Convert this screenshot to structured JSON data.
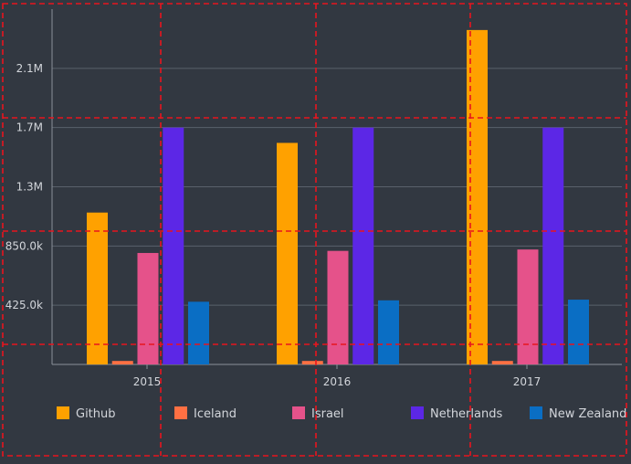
{
  "chart_data": {
    "type": "bar",
    "categories": [
      "2015",
      "2016",
      "2017"
    ],
    "series": [
      {
        "name": "Github",
        "color": "#FFA100",
        "values": [
          1090000,
          1590000,
          2400000
        ]
      },
      {
        "name": "Iceland",
        "color": "#FF7043",
        "values": [
          25000,
          25000,
          25000
        ]
      },
      {
        "name": "Israel",
        "color": "#E5528A",
        "values": [
          800000,
          815000,
          825000
        ]
      },
      {
        "name": "Netherlands",
        "color": "#5C27E6",
        "values": [
          1700000,
          1700000,
          1700000
        ]
      },
      {
        "name": "New Zealand",
        "color": "#0A6EC4",
        "values": [
          450000,
          460000,
          465000
        ]
      }
    ],
    "yticks": [
      {
        "value": 425000,
        "label": "425.0k"
      },
      {
        "value": 850000,
        "label": "850.0k"
      },
      {
        "value": 1275000,
        "label": "1.3M"
      },
      {
        "value": 1700000,
        "label": "1.7M"
      },
      {
        "value": 2125000,
        "label": "2.1M"
      }
    ],
    "ylim": [
      0,
      2550000
    ],
    "grid": true,
    "legend_position": "bottom",
    "title": "",
    "xlabel": "",
    "ylabel": ""
  }
}
